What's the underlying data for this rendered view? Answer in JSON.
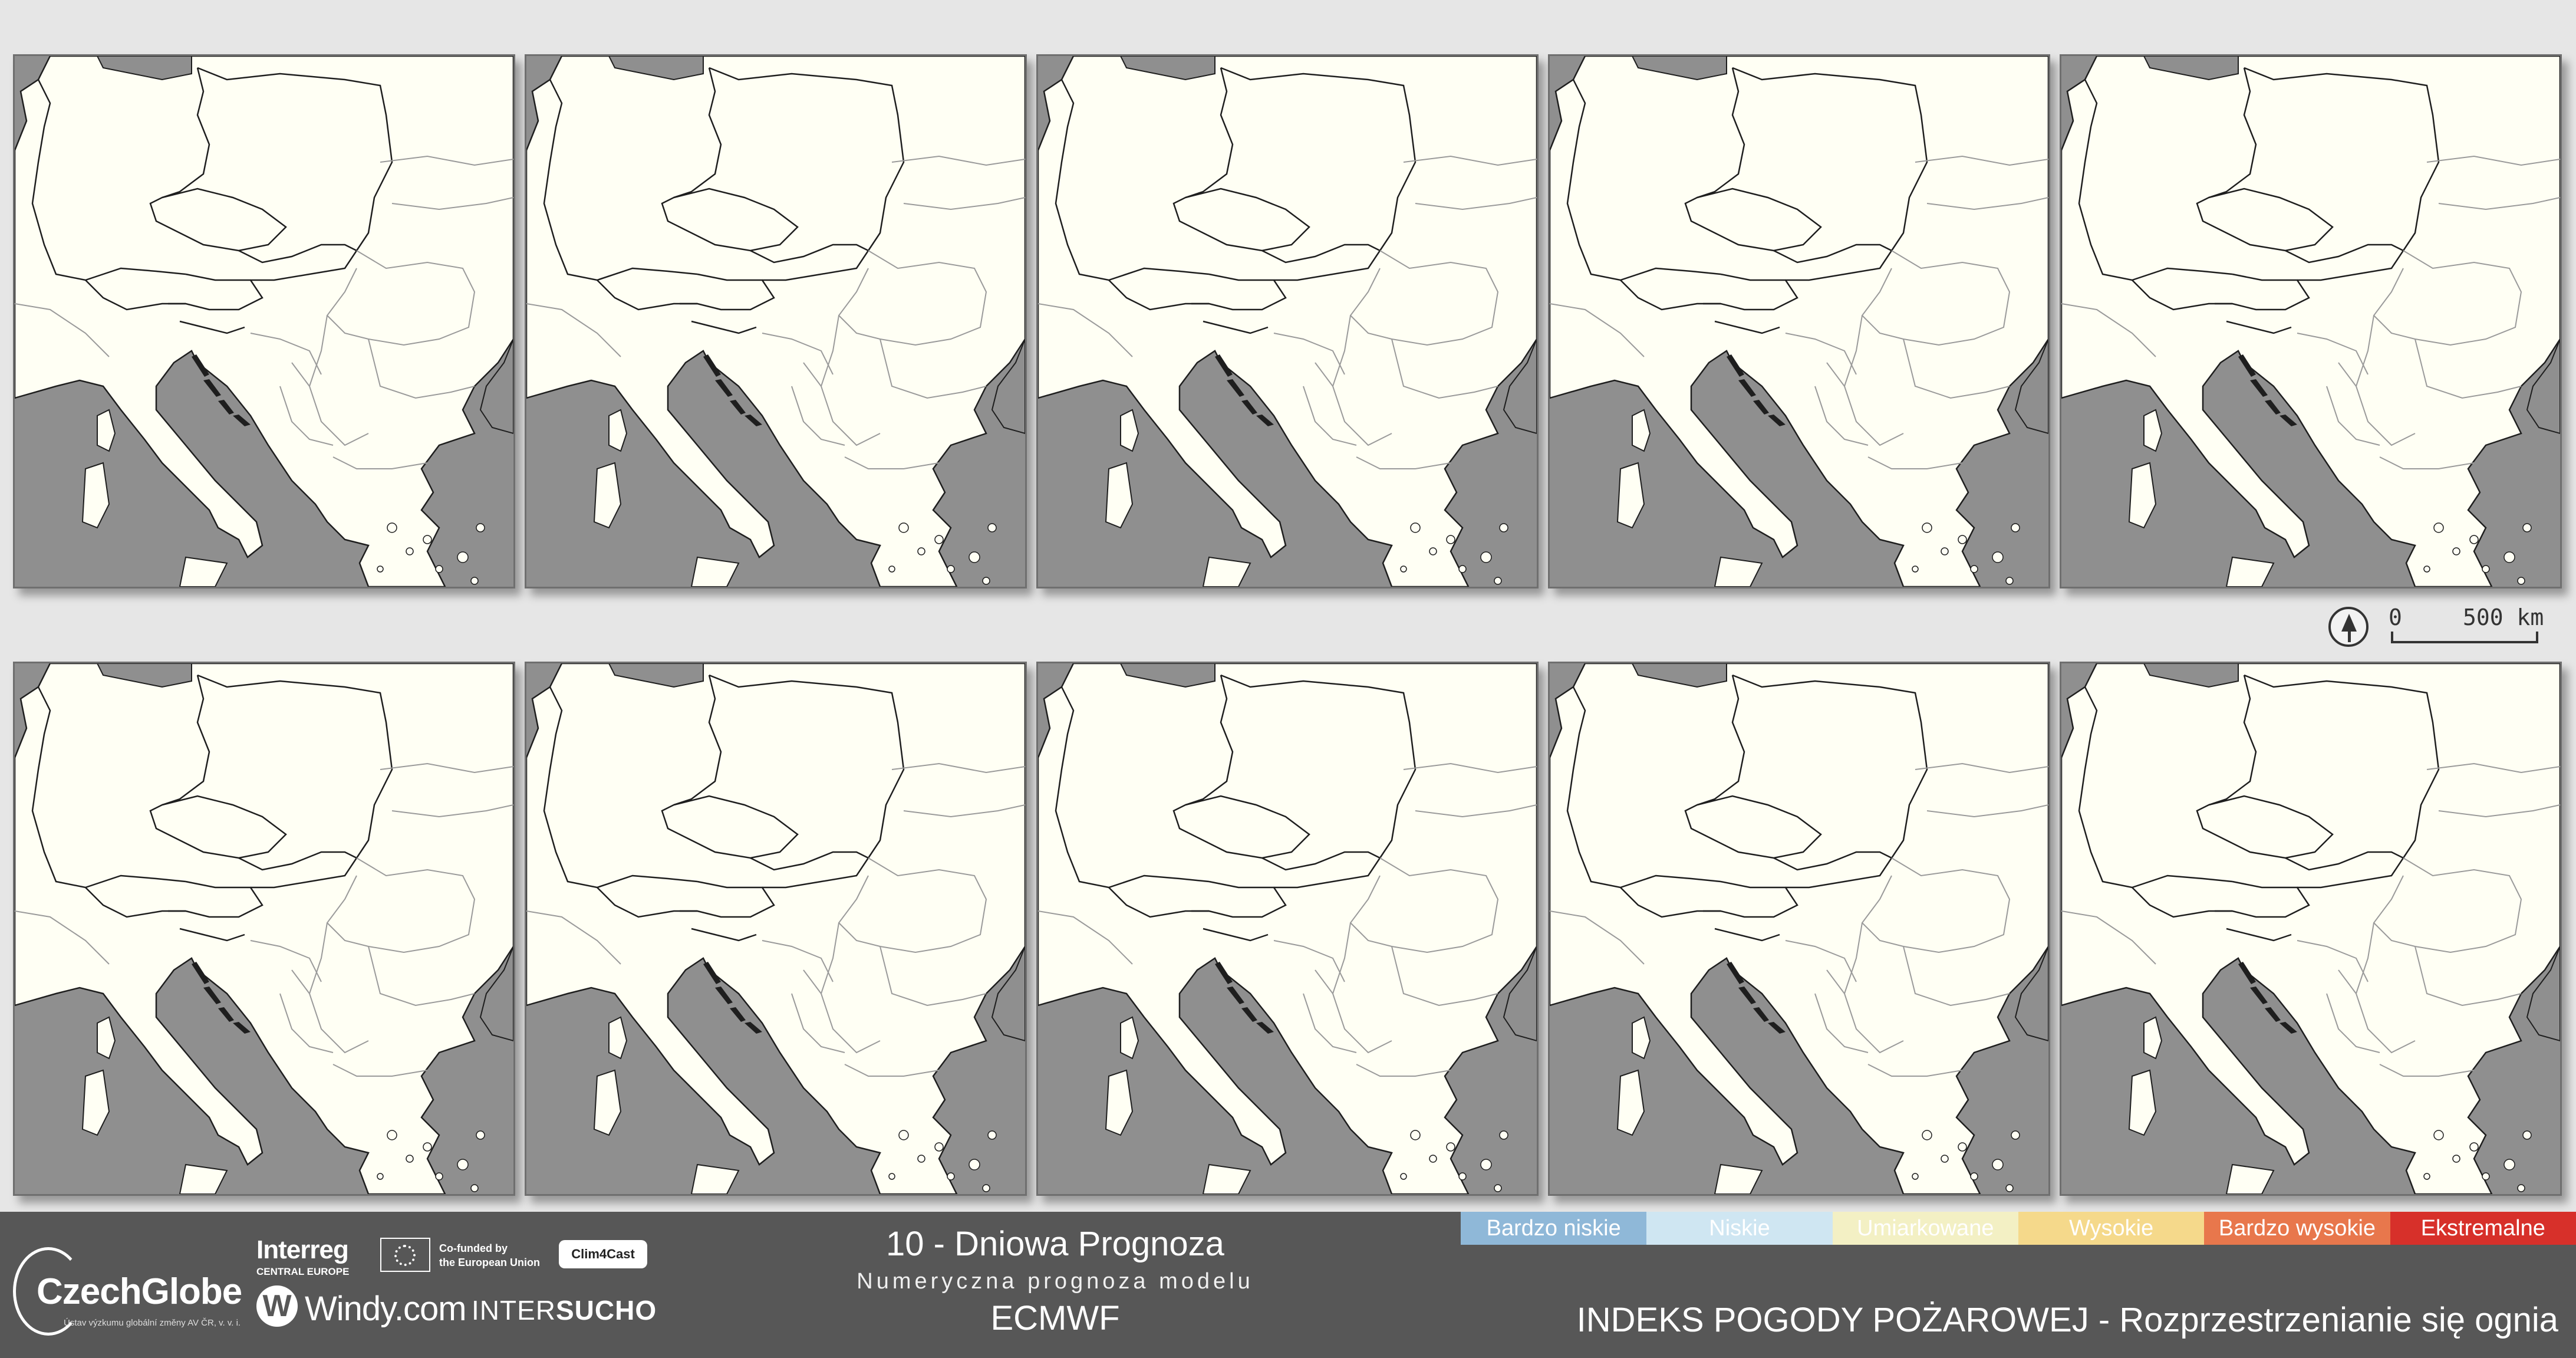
{
  "map": {
    "panel_count": 10,
    "colors": {
      "land": "#fffff4",
      "sea": "#8f8f8f",
      "border_major": "#1e1e1e",
      "border_minor": "#9a9a9a"
    }
  },
  "scalebar": {
    "north_icon": "north-arrow-icon",
    "zero_label": "0",
    "distance_label": "500 km"
  },
  "footer": {
    "czechglobe": {
      "name": "CzechGlobe",
      "subtitle": "Ústav výzkumu globální změny AV ČR, v. v. i."
    },
    "interreg": {
      "name": "Interreg",
      "program": "CENTRAL EUROPE"
    },
    "eu": {
      "flag_icon": "eu-flag-icon",
      "line1": "Co-funded by",
      "line2": "the European Union"
    },
    "clim4cast": "Clim4Cast",
    "windy": {
      "icon_letter": "W",
      "name": "Windy.com"
    },
    "intersucho": {
      "part1": "INTER",
      "part2": "SUCHO"
    },
    "title": "10 - Dniowa Prognoza",
    "subtitle": "Numeryczna prognoza modelu",
    "model": "ECMWF",
    "legend": [
      {
        "label": "Bardzo niskie",
        "color": "#8fb8d8"
      },
      {
        "label": "Niskie",
        "color": "#cfe6f2"
      },
      {
        "label": "Umiarkowane",
        "color": "#f3f0c4"
      },
      {
        "label": "Wysokie",
        "color": "#f5d98b"
      },
      {
        "label": "Bardzo wysokie",
        "color": "#e8774c"
      },
      {
        "label": "Ekstremalne",
        "color": "#d7302a"
      }
    ],
    "index_title": "INDEKS POGODY POŻAROWEJ - Rozprzestrzenianie się ognia"
  }
}
